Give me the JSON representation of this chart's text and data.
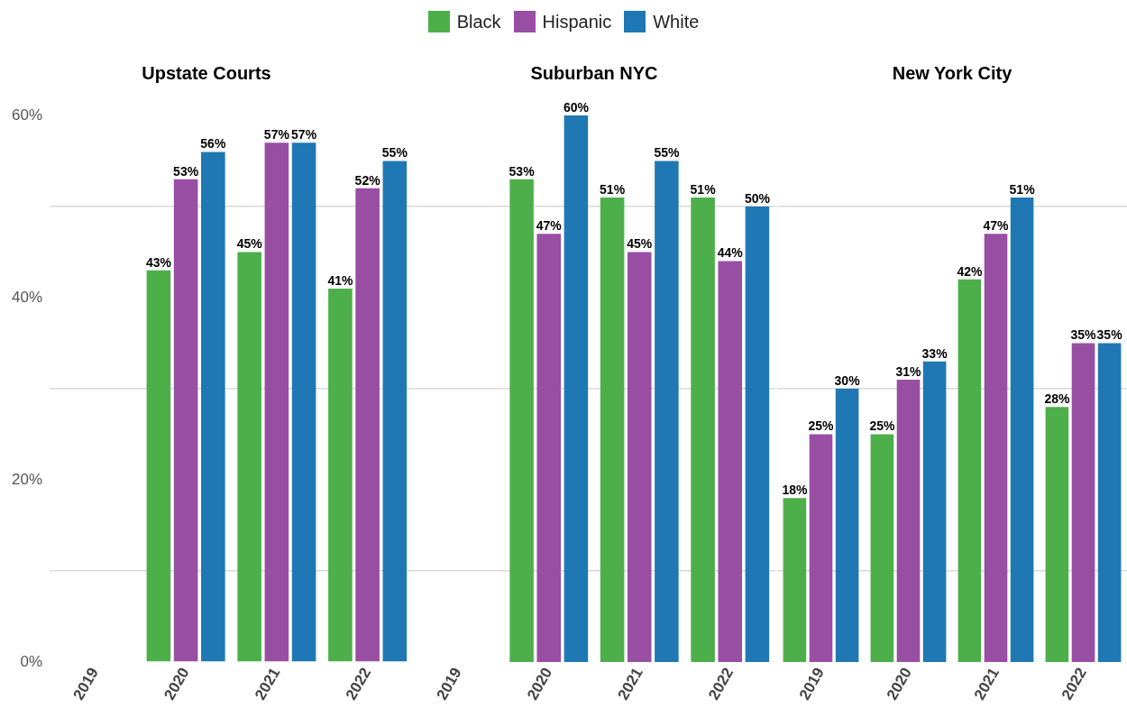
{
  "chart_data": [
    {
      "type": "bar",
      "title": "Upstate Courts",
      "categories": [
        "2019",
        "2020",
        "2021",
        "2022"
      ],
      "ylim": [
        0,
        60
      ],
      "yticks": [
        {
          "value": 0,
          "label": "0%"
        },
        {
          "value": 10,
          "label": null
        },
        {
          "value": 20,
          "label": "20%"
        },
        {
          "value": 30,
          "label": null
        },
        {
          "value": 40,
          "label": "40%"
        },
        {
          "value": 50,
          "label": null
        },
        {
          "value": 60,
          "label": "60%"
        }
      ],
      "grid": "y",
      "legend": "top",
      "series": [
        {
          "name": "Black",
          "color": "#4daf4a",
          "values": [
            null,
            43,
            45,
            41
          ],
          "value_labels": [
            null,
            "43%",
            "45%",
            "41%"
          ]
        },
        {
          "name": "Hispanic",
          "color": "#984ea3",
          "values": [
            null,
            53,
            57,
            52
          ],
          "value_labels": [
            null,
            "53%",
            "57%",
            "52%"
          ]
        },
        {
          "name": "White",
          "color": "#1f78b4",
          "values": [
            null,
            56,
            57,
            55
          ],
          "value_labels": [
            null,
            "56%",
            "57%",
            "55%"
          ]
        }
      ]
    },
    {
      "type": "bar",
      "title": "Suburban NYC",
      "categories": [
        "2019",
        "2020",
        "2021",
        "2022"
      ],
      "ylim": [
        0,
        60
      ],
      "yticks": [
        {
          "value": 10,
          "label": null
        },
        {
          "value": 30,
          "label": null
        },
        {
          "value": 50,
          "label": null
        }
      ],
      "grid": "y",
      "tick_labels": "x",
      "series": [
        {
          "color": "#4daf4a",
          "values": [
            null,
            53,
            51,
            51
          ],
          "value_labels": [
            null,
            "53%",
            "51%",
            "51%"
          ]
        },
        {
          "color": "#984ea3",
          "values": [
            null,
            47,
            45,
            44
          ],
          "value_labels": [
            null,
            "47%",
            "45%",
            "44%"
          ]
        },
        {
          "color": "#1f78b4",
          "values": [
            null,
            60,
            55,
            50
          ],
          "value_labels": [
            null,
            "60%",
            "55%",
            "50%"
          ]
        }
      ]
    },
    {
      "type": "bar",
      "title": "New York City",
      "categories": [
        "2019",
        "2020",
        "2021",
        "2022"
      ],
      "ylim": [
        0,
        60
      ],
      "yticks": [
        {
          "value": 10,
          "label": null
        },
        {
          "value": 30,
          "label": null
        },
        {
          "value": 50,
          "label": null
        }
      ],
      "grid": "y",
      "tick_labels": "x",
      "series": [
        {
          "color": "#4daf4a",
          "values": [
            18,
            25,
            42,
            28
          ],
          "value_labels": [
            "18%",
            "25%",
            "42%",
            "28%"
          ]
        },
        {
          "color": "#984ea3",
          "values": [
            25,
            31,
            47,
            35
          ],
          "value_labels": [
            "25%",
            "31%",
            "47%",
            "35%"
          ]
        },
        {
          "color": "#1f78b4",
          "values": [
            30,
            33,
            51,
            35
          ],
          "value_labels": [
            "30%",
            "33%",
            "51%",
            "35%"
          ]
        }
      ]
    }
  ]
}
